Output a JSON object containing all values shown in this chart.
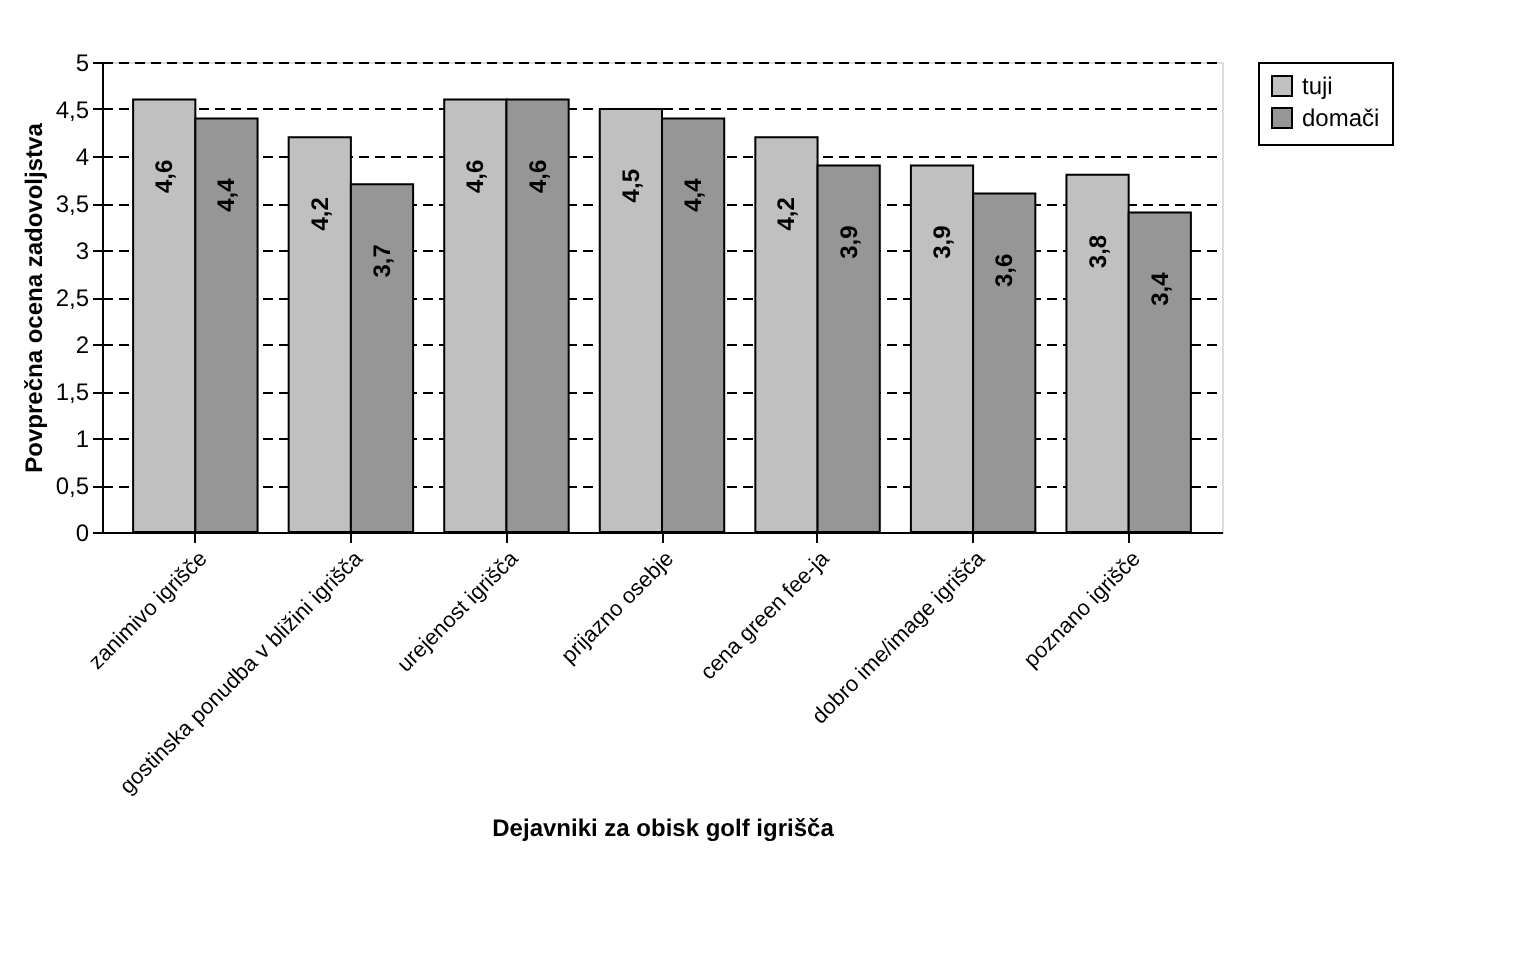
{
  "chart_data": {
    "type": "bar",
    "xlabel": "Dejavniki za obisk golf igrišča",
    "ylabel": "Povprečna ocena zadovoljstva",
    "categories": [
      "zanimivo igrišče",
      "gostinska ponudba v bližini igrišča",
      "urejenost igrišča",
      "prijazno osebje",
      "cena green fee-ja",
      "dobro ime/image igrišča",
      "poznano igrišče"
    ],
    "series": [
      {
        "name": "tuji",
        "color": "#c0c0c0",
        "values": [
          4.6,
          4.2,
          4.6,
          4.5,
          4.2,
          3.9,
          3.8
        ],
        "value_labels": [
          "4,6",
          "4,2",
          "4,6",
          "4,5",
          "4,2",
          "3,9",
          "3,8"
        ]
      },
      {
        "name": "domači",
        "color": "#969696",
        "values": [
          4.4,
          3.7,
          4.6,
          4.4,
          3.9,
          3.6,
          3.4
        ],
        "value_labels": [
          "4,4",
          "3,7",
          "4,6",
          "4,4",
          "3,9",
          "3,6",
          "3,4"
        ]
      }
    ],
    "ylim": [
      0,
      5
    ],
    "yticks": [
      0,
      {
        "value": 0.5,
        "label": "0,5"
      },
      1,
      {
        "value": 1.5,
        "label": "1,5"
      },
      2,
      {
        "value": 2.5,
        "label": "2,5"
      },
      3,
      {
        "value": 3.5,
        "label": "3,5"
      },
      4,
      {
        "value": 4.5,
        "label": "4,5"
      },
      5
    ],
    "grid": "y",
    "line_style": "dashed",
    "legend": "right"
  }
}
